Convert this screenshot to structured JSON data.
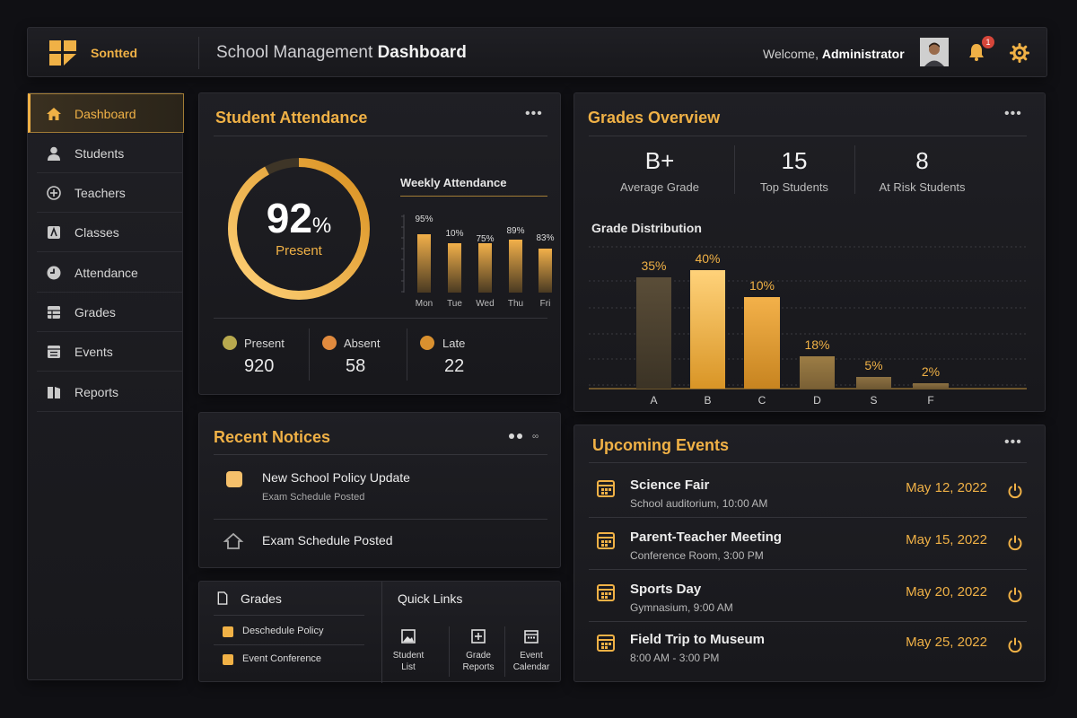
{
  "header": {
    "brand": "Sontted",
    "title_prefix": "School Management ",
    "title_bold": "Dashboard",
    "welcome_prefix": "Welcome, ",
    "welcome_user": "Administrator",
    "notification_count": "1"
  },
  "sidebar": {
    "items": [
      {
        "label": "Dashboard",
        "icon": "home-icon"
      },
      {
        "label": "Students",
        "icon": "user-icon"
      },
      {
        "label": "Teachers",
        "icon": "plus-circle-icon"
      },
      {
        "label": "Classes",
        "icon": "class-icon"
      },
      {
        "label": "Attendance",
        "icon": "clock-icon"
      },
      {
        "label": "Grades",
        "icon": "grid-icon"
      },
      {
        "label": "Events",
        "icon": "list-icon"
      },
      {
        "label": "Reports",
        "icon": "book-icon"
      }
    ]
  },
  "attendance": {
    "title": "Student Attendance",
    "percent": "92",
    "percent_sign": "%",
    "percent_value": 0.92,
    "ring_label": "Present",
    "weekly_title": "Weekly Attendance",
    "stats": [
      {
        "label": "Present",
        "value": "920",
        "color": "#b8a94e"
      },
      {
        "label": "Absent",
        "value": "58",
        "color": "#e08a3e"
      },
      {
        "label": "Late",
        "value": "22",
        "color": "#d9902f"
      }
    ]
  },
  "grades": {
    "title": "Grades Overview",
    "kpis": [
      {
        "value": "B+",
        "label": "Average Grade"
      },
      {
        "value": "15",
        "label": "Top Students"
      },
      {
        "value": "8",
        "label": "At Risk Students"
      }
    ],
    "distribution_title": "Grade Distribution"
  },
  "notices": {
    "title": "Recent Notices",
    "items": [
      {
        "title": "New School Policy Update",
        "sub": "Exam Schedule Posted"
      },
      {
        "title": "Exam Schedule Posted",
        "sub": ""
      }
    ]
  },
  "todo": {
    "title": "Grades",
    "items": [
      "Deschedule Policy",
      "Event Conference"
    ]
  },
  "quick_links": {
    "title": "Quick Links",
    "items": [
      {
        "line1": "Student",
        "line2": "List"
      },
      {
        "line1": "Grade",
        "line2": "Reports"
      },
      {
        "line1": "Event",
        "line2": "Calendar"
      }
    ]
  },
  "events": {
    "title": "Upcoming Events",
    "items": [
      {
        "title": "Science Fair",
        "sub": "School auditorium, 10:00 AM",
        "date": "May 12, 2022"
      },
      {
        "title": "Parent-Teacher Meeting",
        "sub": "Conference Room, 3:00 PM",
        "date": "May 15, 2022"
      },
      {
        "title": "Sports Day",
        "sub": "Gymnasium, 9:00 AM",
        "date": "May 20, 2022"
      },
      {
        "title": "Field Trip to Museum",
        "sub": "8:00 AM - 3:00 PM",
        "date": "May 25, 2022"
      }
    ]
  },
  "colors": {
    "accent": "#f0b146",
    "background": "#101014",
    "panel": "#1c1c21"
  },
  "chart_data": [
    {
      "type": "bar",
      "title": "Weekly Attendance",
      "categories": [
        "Mon",
        "Tue",
        "Wed",
        "Thu",
        "Fri"
      ],
      "values": [
        95,
        10,
        75,
        89,
        83
      ],
      "value_labels": [
        "95%",
        "10%",
        "75%",
        "89%",
        "83%"
      ],
      "ylim": [
        0,
        100
      ]
    },
    {
      "type": "bar",
      "title": "Grade Distribution",
      "categories": [
        "A",
        "B",
        "C",
        "D",
        "S",
        "F"
      ],
      "values": [
        35,
        40,
        10,
        18,
        5,
        2
      ],
      "value_labels": [
        "35%",
        "40%",
        "10%",
        "18%",
        "5%",
        "2%"
      ],
      "ylim": [
        0,
        50
      ]
    }
  ]
}
